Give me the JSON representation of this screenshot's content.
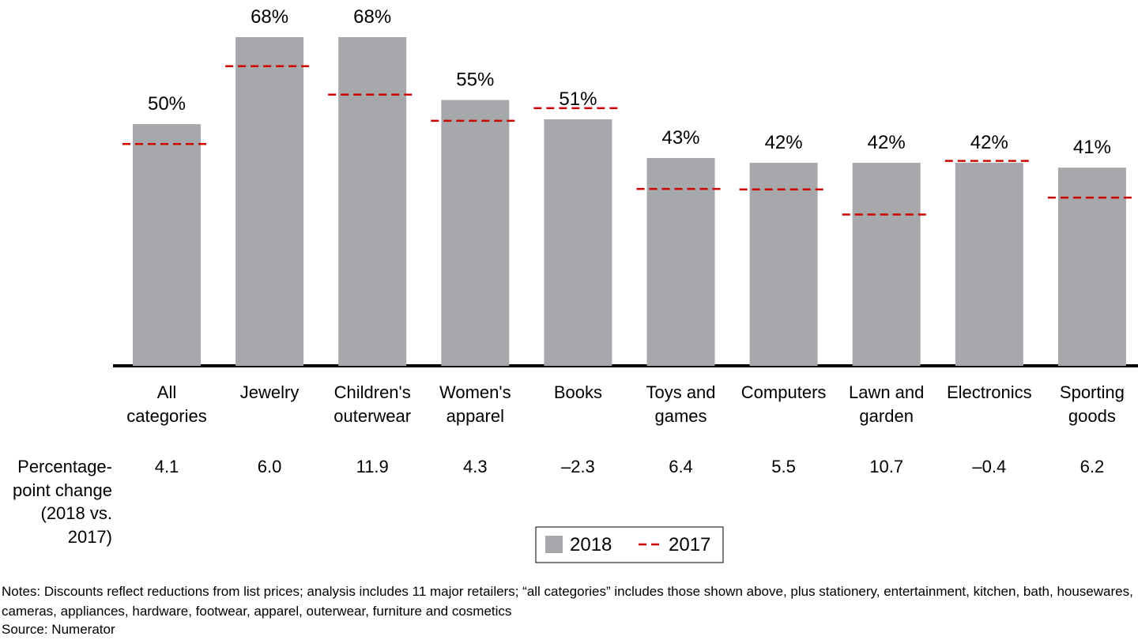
{
  "chart_data": {
    "type": "bar",
    "categories": [
      "All categories",
      "Jewelry",
      "Children's outerwear",
      "Women's apparel",
      "Books",
      "Toys and games",
      "Computers",
      "Lawn and garden",
      "Electronics",
      "Sporting goods"
    ],
    "series": [
      {
        "name": "2018",
        "color": "#a7a8ab",
        "values": [
          50,
          68,
          68,
          55,
          51,
          43,
          42,
          42,
          42,
          41
        ],
        "value_labels": [
          "50%",
          "68%",
          "68%",
          "55%",
          "51%",
          "43%",
          "42%",
          "42%",
          "42%",
          "41%"
        ]
      },
      {
        "name": "2017",
        "color": "#cc0000",
        "values": [
          45.9,
          62.0,
          56.1,
          50.7,
          53.3,
          36.6,
          36.5,
          31.3,
          42.4,
          34.8
        ]
      }
    ],
    "change_row": {
      "label": "Percentage-point change (2018 vs. 2017)",
      "values": [
        4.1,
        6.0,
        11.9,
        4.3,
        -2.3,
        6.4,
        5.5,
        10.7,
        -0.4,
        6.2
      ],
      "value_labels": [
        "4.1",
        "6.0",
        "11.9",
        "4.3",
        "–2.3",
        "6.4",
        "5.5",
        "10.7",
        "–0.4",
        "6.2"
      ]
    },
    "notes": "Notes: Discounts reflect reductions from list prices; analysis includes 11 major retailers; “all categories” includes those shown above, plus stationery, entertainment, kitchen, bath, housewares, cameras, appliances, hardware, footwear, apparel, outerwear, furniture and cosmetics",
    "source": "Source: Numerator"
  }
}
